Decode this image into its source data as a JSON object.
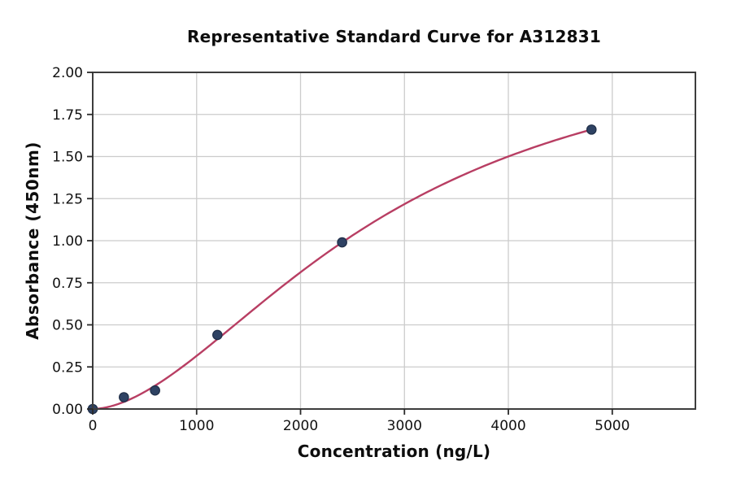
{
  "chart_data": {
    "type": "scatter",
    "title": "Representative Standard Curve for A312831",
    "xlabel": "Concentration (ng/L)",
    "ylabel": "Absorbance (450nm)",
    "xlim": [
      0,
      5800
    ],
    "ylim": [
      0,
      2.0
    ],
    "x_ticks": [
      0,
      1000,
      2000,
      3000,
      4000,
      5000
    ],
    "y_ticks": [
      0.0,
      0.25,
      0.5,
      0.75,
      1.0,
      1.25,
      1.5,
      1.75,
      2.0
    ],
    "grid": true,
    "points": {
      "x": [
        0,
        300,
        600,
        1200,
        2400,
        4800
      ],
      "y": [
        0.0,
        0.07,
        0.11,
        0.44,
        0.99,
        1.66
      ]
    },
    "fit_curve": {
      "model": "4PL",
      "a": 0.0,
      "b": 1.78,
      "c": 2809,
      "d": 2.3,
      "x_range": [
        0,
        4800
      ]
    },
    "colors": {
      "curve": "#b83e63",
      "marker_fill": "#2e4263",
      "marker_edge": "#1f2e47",
      "grid": "#cccccc",
      "spine": "#3d3d3d",
      "tick": "#2a2a2a",
      "text": "#111111"
    }
  }
}
